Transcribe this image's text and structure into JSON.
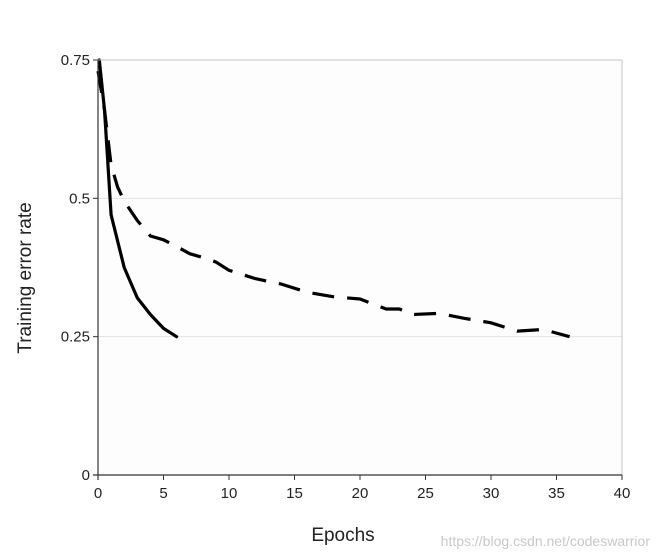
{
  "chart_data": {
    "type": "line",
    "title": "",
    "xlabel": "Epochs",
    "ylabel": "Training error rate",
    "xlim": [
      0,
      40
    ],
    "ylim": [
      0,
      0.75
    ],
    "x_ticks": [
      0,
      5,
      10,
      15,
      20,
      25,
      30,
      35,
      40
    ],
    "x_tick_labels": [
      "0",
      "5",
      "10",
      "15",
      "20",
      "25",
      "30",
      "35",
      "40"
    ],
    "y_ticks": [
      0,
      0.25,
      0.5,
      0.75
    ],
    "y_tick_labels": [
      "0",
      "0.25",
      "0.5",
      "0.75"
    ],
    "grid": "horizontal",
    "legend": "none",
    "series": [
      {
        "style": "solid",
        "color": "#000000",
        "x": [
          0.1,
          0.5,
          1,
          2,
          3,
          4,
          5,
          6
        ],
        "y": [
          0.75,
          0.66,
          0.47,
          0.375,
          0.32,
          0.29,
          0.265,
          0.25
        ]
      },
      {
        "style": "dashed",
        "color": "#000000",
        "x": [
          0,
          0.5,
          1,
          1.5,
          2,
          3,
          4,
          5,
          6,
          7,
          8,
          9,
          10,
          12,
          14,
          16,
          18,
          20,
          22,
          23,
          24,
          26,
          28,
          30,
          32,
          34,
          36
        ],
        "y": [
          0.73,
          0.66,
          0.56,
          0.52,
          0.495,
          0.46,
          0.432,
          0.425,
          0.413,
          0.4,
          0.393,
          0.385,
          0.37,
          0.355,
          0.345,
          0.33,
          0.322,
          0.318,
          0.3,
          0.3,
          0.29,
          0.292,
          0.283,
          0.275,
          0.26,
          0.263,
          0.25
        ]
      }
    ]
  },
  "watermark": "https://blog.csdn.net/codeswarrior"
}
